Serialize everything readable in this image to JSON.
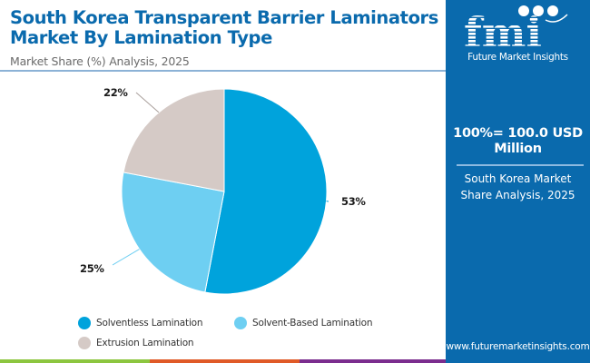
{
  "header": {
    "title": "South Korea Transparent Barrier Laminators Market By Lamination Type",
    "subtitle": "Market Share (%) Analysis, 2025"
  },
  "sidebar": {
    "logo_letters": "fmi",
    "logo_text": "Future Market Insights",
    "market_size": "100%= 100.0 USD Million",
    "caption": "South Korea Market Share Analysis, 2025",
    "website": "www.futuremarketinsights.com",
    "background_color": "#0a6aad"
  },
  "chart_data": {
    "type": "pie",
    "title": "South Korea Transparent Barrier Laminators Market By Lamination Type",
    "subtitle": "Market Share (%) Analysis, 2025",
    "start_angle": "12 o'clock",
    "direction": "clockwise",
    "legend_position": "bottom",
    "slices": [
      {
        "name": "Solventless Lamination",
        "value": 53,
        "label": "53%",
        "color": "#00a3dc"
      },
      {
        "name": "Solvent-Based Lamination",
        "value": 25,
        "label": "25%",
        "color": "#6ecff2"
      },
      {
        "name": "Extrusion Lamination",
        "value": 22,
        "label": "22%",
        "color": "#d5cac6"
      }
    ]
  },
  "footer": {
    "stripe_colors": [
      "#8cc63f",
      "#e05a27",
      "#7b2d8e",
      "#0a6aad"
    ]
  }
}
